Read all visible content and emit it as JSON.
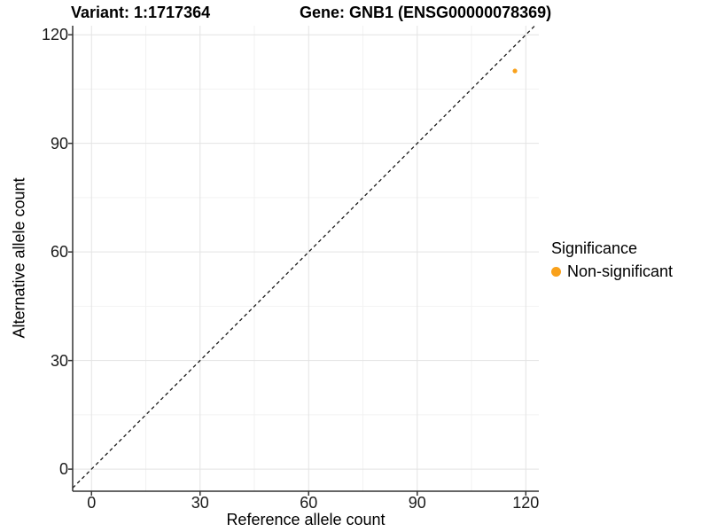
{
  "chart_data": {
    "type": "scatter",
    "title_left": "Variant: 1:1717364",
    "title_right": "Gene: GNB1 (ENSG00000078369)",
    "xlabel": "Reference allele count",
    "ylabel": "Alternative allele count",
    "x_ticks": [
      0,
      30,
      60,
      90,
      120
    ],
    "y_ticks": [
      0,
      30,
      60,
      90,
      120
    ],
    "x_minor_ticks": [
      15,
      45,
      75,
      105
    ],
    "y_minor_ticks": [
      15,
      45,
      75,
      105
    ],
    "xlim": [
      -5.2,
      123.6
    ],
    "ylim": [
      -6.1,
      122.5
    ],
    "grid": "major+minor",
    "aspect": "equal",
    "series": [
      {
        "name": "Non-significant",
        "color": "#F9A11B",
        "points": [
          {
            "x": 117,
            "y": 110
          }
        ]
      }
    ],
    "reference_line": {
      "kind": "identity",
      "style": "dashed",
      "color": "#1A1A1A"
    },
    "legend": {
      "title": "Significance",
      "position": "right",
      "items": [
        {
          "label": "Non-significant",
          "color": "#F9A11B",
          "marker": "circle"
        }
      ]
    },
    "colors": {
      "background": "#FFFFFF",
      "grid_major": "#E3E3E3",
      "grid_minor": "#F2F2F2",
      "axis_line": "#333333",
      "text": "#1A1A1A",
      "point": "#F9A11B"
    }
  }
}
